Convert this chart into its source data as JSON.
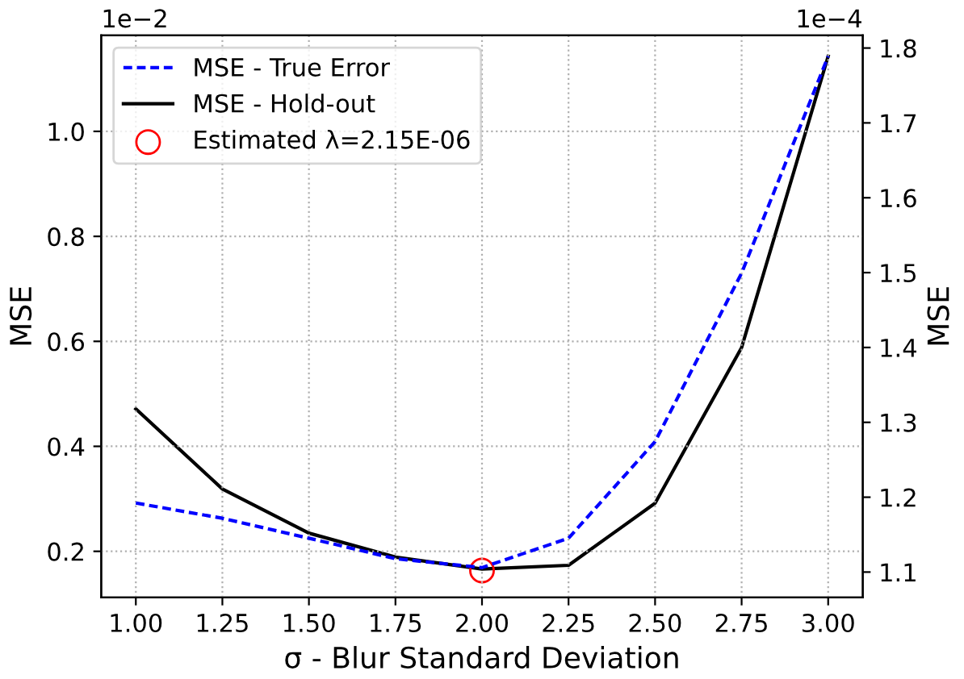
{
  "chart_data": {
    "type": "line",
    "x": [
      1.0,
      1.25,
      1.5,
      1.75,
      2.0,
      2.25,
      2.5,
      2.75,
      3.0
    ],
    "xlabel": "σ - Blur Standard Deviation",
    "ylabel": "MSE",
    "y2label": "MSE",
    "xlim": [
      0.9,
      3.1
    ],
    "xticks": [
      {
        "value": 1.0,
        "label": "1.00"
      },
      1.25,
      {
        "value": 1.5,
        "label": "1.50"
      },
      1.75,
      {
        "value": 2.0,
        "label": "2.00"
      },
      2.25,
      {
        "value": 2.5,
        "label": "2.50"
      },
      2.75,
      {
        "value": 3.0,
        "label": "3.00"
      }
    ],
    "ylim": [
      0.112,
      1.183
    ],
    "yticks": [
      0.2,
      0.4,
      0.6,
      0.8,
      {
        "value": 1.0,
        "label": "1.0"
      }
    ],
    "y2lim": [
      1.066,
      1.817
    ],
    "y2ticks": [
      1.1,
      1.2,
      1.3,
      1.4,
      1.5,
      1.6,
      1.7,
      1.8
    ],
    "series": [
      {
        "name": "MSE - True Error",
        "color": "#0000ff",
        "line_style": "dashed",
        "values": [
          0.292,
          0.263,
          0.225,
          0.186,
          0.169,
          0.225,
          0.409,
          0.73,
          1.143
        ]
      },
      {
        "name": "MSE - Hold-out",
        "color": "#000000",
        "line_style": "solid",
        "axis": "y2",
        "values": [
          1.318,
          1.211,
          1.152,
          1.12,
          1.104,
          1.109,
          1.192,
          1.4,
          1.789
        ]
      },
      {
        "name": "Estimated λ=2.15E-06",
        "type": "scatter",
        "marker": "circle",
        "color": "#ff0000",
        "axis": "y2",
        "x": [
          2.0
        ],
        "values": [
          1.102
        ]
      }
    ],
    "annotations": [
      "1e−2",
      "1e−4"
    ],
    "grid": true,
    "legend": "top left"
  }
}
